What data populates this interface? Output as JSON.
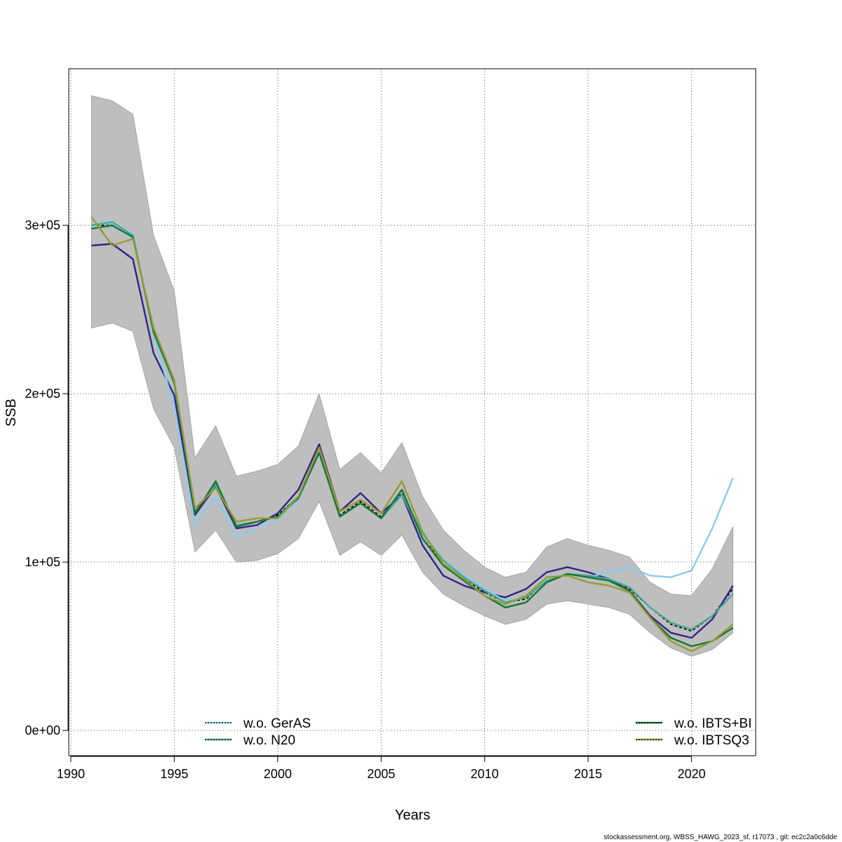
{
  "chart_data": {
    "type": "line",
    "xlabel": "Years",
    "ylabel": "SSB",
    "xlim": [
      1989.9,
      2023.1
    ],
    "ylim": [
      -15000,
      393000
    ],
    "xticks": [
      1990,
      1995,
      2000,
      2005,
      2010,
      2015,
      2020
    ],
    "xtick_labels": [
      "1990",
      "1995",
      "2000",
      "2005",
      "2010",
      "2015",
      "2020"
    ],
    "yticks": [
      0,
      100000,
      200000,
      300000
    ],
    "ytick_labels": [
      "0e+00",
      "1e+05",
      "2e+05",
      "3e+05"
    ],
    "grid": true,
    "x": [
      1991,
      1992,
      1993,
      1994,
      1995,
      1996,
      1997,
      1998,
      1999,
      2000,
      2001,
      2002,
      2003,
      2004,
      2005,
      2006,
      2007,
      2008,
      2009,
      2010,
      2011,
      2012,
      2013,
      2014,
      2015,
      2016,
      2017,
      2018,
      2019,
      2020,
      2021,
      2022
    ],
    "band": {
      "color": "#bebebe",
      "upper": [
        377000,
        374000,
        366000,
        294000,
        261000,
        162000,
        181000,
        151000,
        154000,
        158000,
        169000,
        200000,
        155000,
        165000,
        153000,
        171000,
        139000,
        119000,
        107000,
        97000,
        91000,
        94000,
        109000,
        114000,
        110000,
        107000,
        103000,
        88000,
        81000,
        80000,
        96000,
        121000
      ],
      "lower": [
        239000,
        242000,
        237000,
        191000,
        168000,
        106000,
        119000,
        100000,
        101000,
        105000,
        114000,
        136000,
        104000,
        112000,
        104000,
        116000,
        94000,
        81000,
        74000,
        68000,
        63000,
        66000,
        75000,
        77000,
        75000,
        73000,
        69000,
        58000,
        49000,
        44000,
        48000,
        58000
      ]
    },
    "series": [
      {
        "color": "#000000",
        "dashed": true,
        "values": [
          300000,
          300000,
          293000,
          237000,
          207000,
          130000,
          147000,
          121000,
          124000,
          128000,
          139000,
          165000,
          128000,
          136000,
          127000,
          141000,
          116000,
          99000,
          90000,
          82000,
          76000,
          78000,
          90000,
          93000,
          91000,
          89000,
          84000,
          73000,
          63000,
          59000,
          68000,
          84000
        ]
      },
      {
        "color": "#332288",
        "values": [
          288000,
          289000,
          280000,
          224000,
          199000,
          128000,
          145000,
          120000,
          122000,
          129000,
          143000,
          170000,
          130000,
          141000,
          129000,
          140000,
          110000,
          92000,
          86000,
          82000,
          79000,
          84000,
          94000,
          97000,
          94000,
          90000,
          83000,
          68000,
          58000,
          55000,
          66000,
          86000
        ]
      },
      {
        "color": "#88ccee",
        "values": [
          301000,
          301000,
          295000,
          235000,
          192000,
          122000,
          139000,
          115000,
          120000,
          125000,
          137000,
          165000,
          127000,
          135000,
          126000,
          140000,
          116000,
          101000,
          92000,
          84000,
          77000,
          79000,
          90000,
          93000,
          91000,
          94000,
          97000,
          92000,
          91000,
          95000,
          120000,
          150000
        ]
      },
      {
        "color": "#44aa99",
        "values": [
          300000,
          302000,
          294000,
          236000,
          206000,
          130000,
          146000,
          122000,
          124000,
          127000,
          139000,
          165000,
          127000,
          135000,
          126000,
          140000,
          117000,
          101000,
          91000,
          83000,
          76000,
          79000,
          89000,
          93000,
          92000,
          90000,
          85000,
          73000,
          64000,
          60000,
          68000,
          81000
        ]
      },
      {
        "color": "#117733",
        "values": [
          298000,
          300000,
          293000,
          237000,
          207000,
          129000,
          148000,
          121000,
          124000,
          127000,
          138000,
          165000,
          127000,
          135000,
          126000,
          143000,
          114000,
          98000,
          89000,
          80000,
          73000,
          76000,
          88000,
          93000,
          91000,
          89000,
          83000,
          67000,
          55000,
          50000,
          53000,
          61000
        ]
      },
      {
        "color": "#999933",
        "values": [
          305000,
          288000,
          292000,
          239000,
          208000,
          132000,
          144000,
          124000,
          126000,
          126000,
          139000,
          168000,
          130000,
          137000,
          129000,
          148000,
          118000,
          99000,
          90000,
          80000,
          75000,
          80000,
          91000,
          92000,
          88000,
          86000,
          82000,
          67000,
          53000,
          47000,
          53000,
          63000
        ]
      }
    ],
    "legend": [
      {
        "name": "w.o. GerAS",
        "color": "#88ccee",
        "position": "bottom-left"
      },
      {
        "name": "w.o. N20",
        "color": "#44aa99",
        "position": "bottom-left"
      },
      {
        "name": "w.o. IBTS+BI",
        "color": "#117733",
        "position": "bottom-right"
      },
      {
        "name": "w.o. IBTSQ3",
        "color": "#999933",
        "position": "bottom-right"
      }
    ]
  },
  "footer": "stockassessment.org, WBSS_HAWG_2023_sf, r17073 , git: ec2c2a0c6dde"
}
